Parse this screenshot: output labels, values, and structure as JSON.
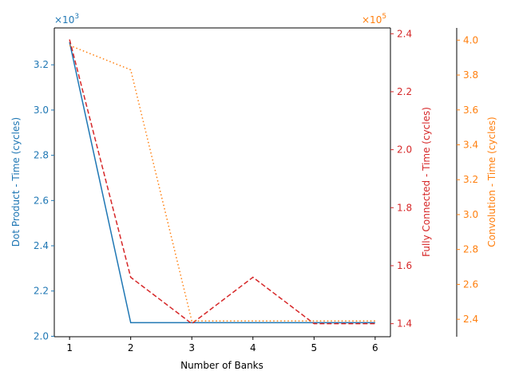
{
  "chart_data": {
    "type": "line",
    "x": [
      1,
      2,
      3,
      4,
      5,
      6
    ],
    "xlabel": "Number of Banks",
    "xticks": [
      "1",
      "2",
      "3",
      "4",
      "5",
      "6"
    ],
    "axes": {
      "left": {
        "label": "Dot Product - Time (cycles)",
        "color": "#1f77b4",
        "multiplier": "×10",
        "exponent": "3",
        "ticks": [
          "2.0",
          "2.2",
          "2.4",
          "2.6",
          "2.8",
          "3.0",
          "3.2"
        ],
        "tick_values": [
          2.0,
          2.2,
          2.4,
          2.6,
          2.8,
          3.0,
          3.2
        ],
        "ylim": [
          1.998,
          3.363
        ]
      },
      "right1": {
        "label": "Fully Connected - Time (cycles)",
        "color": "#d62728",
        "multiplier": "×10",
        "exponent": "5",
        "multiplier_color": "#ff7f0e",
        "ticks": [
          "1.4",
          "1.6",
          "1.8",
          "2.0",
          "2.2",
          "2.4"
        ],
        "tick_values": [
          1.4,
          1.6,
          1.8,
          2.0,
          2.2,
          2.4
        ],
        "ylim": [
          1.355,
          2.42
        ]
      },
      "right2": {
        "label": "Convolution - Time (cycles)",
        "color": "#ff7f0e",
        "ticks": [
          "2.4",
          "2.6",
          "2.8",
          "3.0",
          "3.2",
          "3.4",
          "3.6",
          "3.8",
          "4.0"
        ],
        "tick_values": [
          2.4,
          2.6,
          2.8,
          3.0,
          3.2,
          3.4,
          3.6,
          3.8,
          4.0
        ],
        "ylim": [
          2.3,
          4.07
        ]
      }
    },
    "series": [
      {
        "name": "Dot Product",
        "axis": "left",
        "style": "solid",
        "color": "#1f77b4",
        "values": [
          3.3,
          2.06,
          2.06,
          2.06,
          2.06,
          2.06
        ]
      },
      {
        "name": "Fully Connected",
        "axis": "right1",
        "style": "dashed",
        "color": "#d62728",
        "values": [
          2.38,
          1.56,
          1.4,
          1.56,
          1.4,
          1.4
        ]
      },
      {
        "name": "Convolution",
        "axis": "right2",
        "style": "dotted",
        "color": "#ff7f0e",
        "values": [
          3.97,
          3.83,
          2.39,
          2.39,
          2.39,
          2.39
        ]
      }
    ],
    "grid": false
  }
}
